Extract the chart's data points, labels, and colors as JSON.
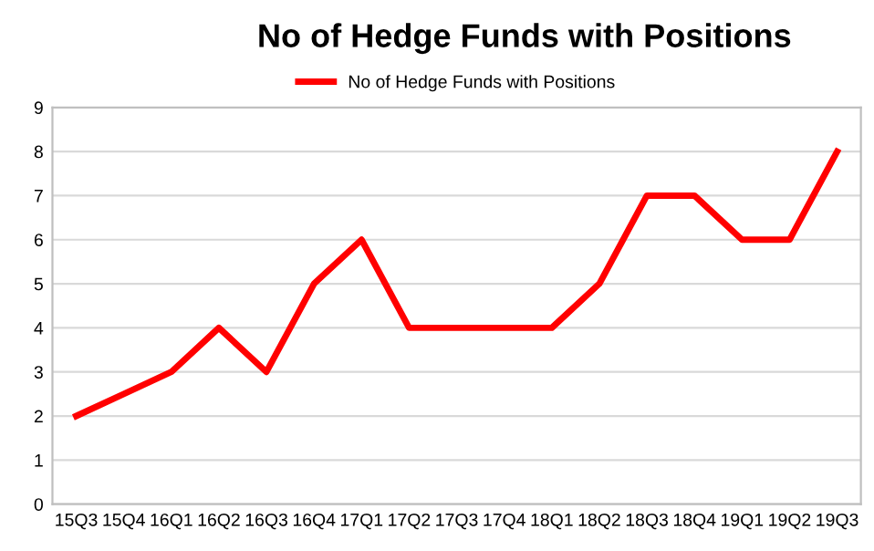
{
  "chart_data": {
    "type": "line",
    "title": "No of Hedge Funds with Positions",
    "categories": [
      "15Q3",
      "15Q4",
      "16Q1",
      "16Q2",
      "16Q3",
      "16Q4",
      "17Q1",
      "17Q2",
      "17Q3",
      "17Q4",
      "18Q1",
      "18Q2",
      "18Q3",
      "18Q4",
      "19Q1",
      "19Q2",
      "19Q3"
    ],
    "series": [
      {
        "name": "No of Hedge Funds with Positions",
        "color": "#ff0000",
        "values": [
          2,
          2.5,
          3,
          4,
          3,
          5,
          6,
          4,
          4,
          4,
          4,
          5,
          7,
          7,
          6,
          6,
          8
        ]
      }
    ],
    "ylim": [
      0,
      9
    ],
    "yticks": [
      0,
      1,
      2,
      3,
      4,
      5,
      6,
      7,
      8,
      9
    ],
    "grid": "y",
    "legend": "top",
    "marker": "none",
    "line_style": "solid"
  }
}
